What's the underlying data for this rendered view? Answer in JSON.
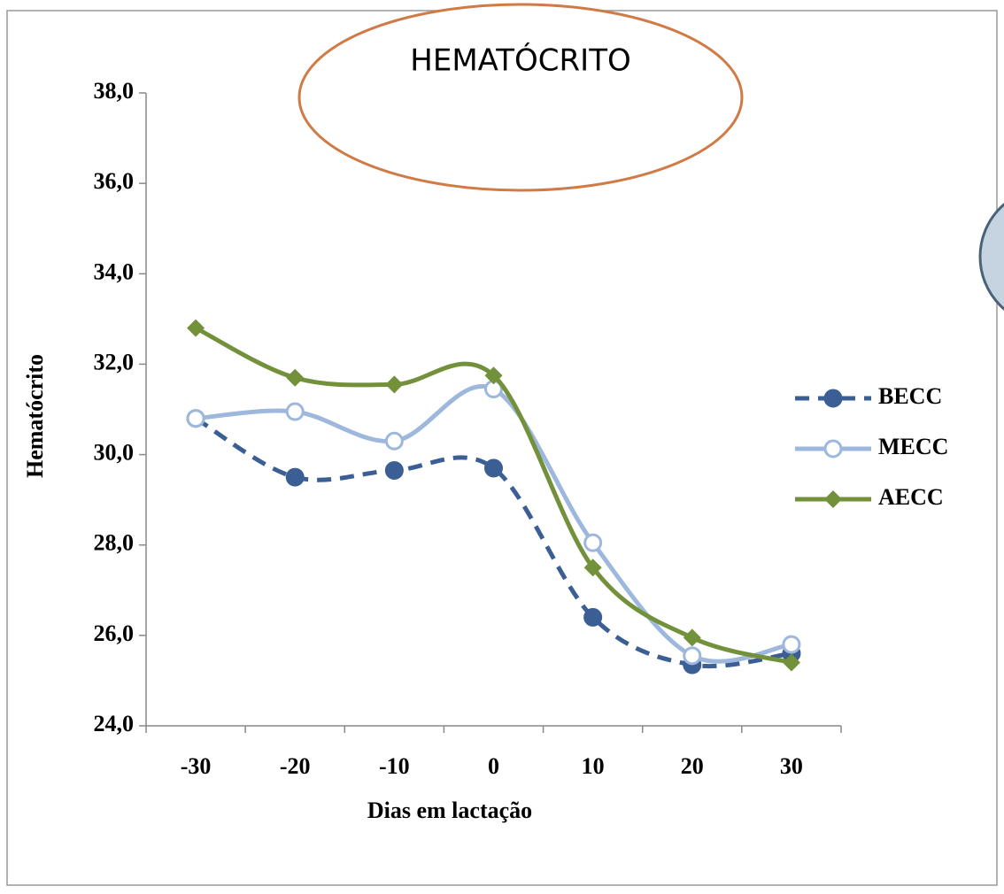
{
  "chart_data": {
    "type": "line",
    "title": "HEMATÓCRITO",
    "x_label": "Dias em lactação",
    "y_label": "Hematócrito",
    "categories": [
      "-30",
      "-20",
      "-10",
      "0",
      "10",
      "20",
      "30"
    ],
    "series": [
      {
        "name": "BECC",
        "color": "#3b5f94",
        "style": "dashed",
        "marker": "filled-circle",
        "values": [
          30.8,
          29.5,
          29.65,
          29.7,
          26.4,
          25.35,
          25.6
        ]
      },
      {
        "name": "MECC",
        "color": "#9db8dc",
        "style": "solid",
        "marker": "open-circle",
        "values": [
          30.8,
          30.95,
          30.3,
          31.45,
          28.05,
          25.55,
          25.8
        ]
      },
      {
        "name": "AECC",
        "color": "#72913a",
        "style": "solid",
        "marker": "diamond",
        "values": [
          32.8,
          31.7,
          31.55,
          31.75,
          27.5,
          25.95,
          25.4
        ]
      }
    ],
    "ylim": [
      24,
      38
    ],
    "yticks": [
      {
        "value": 24,
        "label": "24,0"
      },
      {
        "value": 26,
        "label": "26,0"
      },
      {
        "value": 28,
        "label": "28,0"
      },
      {
        "value": 30,
        "label": "30,0"
      },
      {
        "value": 32,
        "label": "32,0"
      },
      {
        "value": 34,
        "label": "34,0"
      },
      {
        "value": 36,
        "label": "36,0"
      },
      {
        "value": 38,
        "label": "38,0"
      }
    ],
    "smooth": true,
    "legend": "right"
  }
}
